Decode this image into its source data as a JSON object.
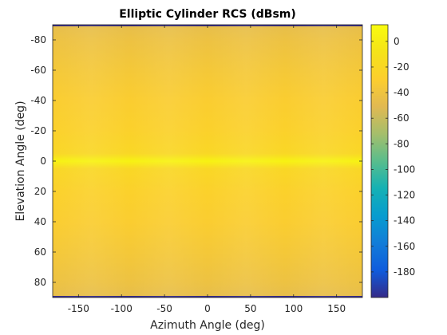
{
  "chart_data": {
    "type": "heatmap",
    "title": "Elliptic Cylinder RCS (dBsm)",
    "xlabel": "Azimuth Angle (deg)",
    "ylabel": "Elevation Angle (deg)",
    "xlim": [
      -180,
      180
    ],
    "ylim": [
      -90,
      90
    ],
    "y_direction": "reverse",
    "x_ticks": [
      -150,
      -100,
      -50,
      0,
      50,
      100,
      150
    ],
    "y_ticks": [
      -80,
      -60,
      -40,
      -20,
      0,
      20,
      40,
      60,
      80
    ],
    "colorbar": {
      "range": [
        -200,
        13
      ],
      "ticks": [
        0,
        -20,
        -40,
        -60,
        -80,
        -100,
        -120,
        -140,
        -160,
        -180
      ],
      "colormap": "parula"
    },
    "grid": false,
    "azimuth": [
      -180,
      -150,
      -120,
      -90,
      -60,
      -30,
      0,
      30,
      60,
      90,
      120,
      150,
      180
    ],
    "elevation": [
      -90,
      -89,
      -80,
      -60,
      -40,
      -20,
      -5,
      0,
      5,
      20,
      40,
      60,
      80,
      89,
      90
    ],
    "values": [
      [
        -200,
        -200,
        -200,
        -200,
        -200,
        -200,
        -200,
        -200,
        -200,
        -200,
        -200,
        -200,
        -200
      ],
      [
        -45,
        -47,
        -46,
        -45,
        -47,
        -46,
        -45,
        -47,
        -46,
        -45,
        -47,
        -46,
        -45
      ],
      [
        -40,
        -43,
        -42,
        -40,
        -43,
        -42,
        -40,
        -43,
        -42,
        -40,
        -43,
        -42,
        -40
      ],
      [
        -34,
        -37,
        -36,
        -34,
        -37,
        -36,
        -34,
        -37,
        -36,
        -34,
        -37,
        -36,
        -34
      ],
      [
        -30,
        -32,
        -31,
        -30,
        -32,
        -31,
        -30,
        -32,
        -31,
        -30,
        -32,
        -31,
        -30
      ],
      [
        -25,
        -28,
        -27,
        -25,
        -28,
        -27,
        -25,
        -28,
        -27,
        -25,
        -28,
        -27,
        -25
      ],
      [
        -19,
        -22,
        -21,
        -19,
        -22,
        -21,
        -19,
        -22,
        -21,
        -19,
        -22,
        -21,
        -19
      ],
      [
        5,
        5,
        5,
        5,
        5,
        5,
        5,
        5,
        5,
        5,
        5,
        5,
        5
      ],
      [
        -19,
        -22,
        -21,
        -19,
        -22,
        -21,
        -19,
        -22,
        -21,
        -19,
        -22,
        -21,
        -19
      ],
      [
        -25,
        -28,
        -27,
        -25,
        -28,
        -27,
        -25,
        -28,
        -27,
        -25,
        -28,
        -27,
        -25
      ],
      [
        -30,
        -32,
        -31,
        -30,
        -32,
        -31,
        -30,
        -32,
        -31,
        -30,
        -32,
        -31,
        -30
      ],
      [
        -34,
        -37,
        -36,
        -34,
        -37,
        -36,
        -34,
        -37,
        -36,
        -34,
        -37,
        -36,
        -34
      ],
      [
        -40,
        -43,
        -42,
        -40,
        -43,
        -42,
        -40,
        -43,
        -42,
        -40,
        -43,
        -42,
        -40
      ],
      [
        -45,
        -47,
        -46,
        -45,
        -47,
        -46,
        -45,
        -47,
        -46,
        -45,
        -47,
        -46,
        -45
      ],
      [
        -200,
        -200,
        -200,
        -200,
        -200,
        -200,
        -200,
        -200,
        -200,
        -200,
        -200,
        -200,
        -200
      ]
    ]
  }
}
